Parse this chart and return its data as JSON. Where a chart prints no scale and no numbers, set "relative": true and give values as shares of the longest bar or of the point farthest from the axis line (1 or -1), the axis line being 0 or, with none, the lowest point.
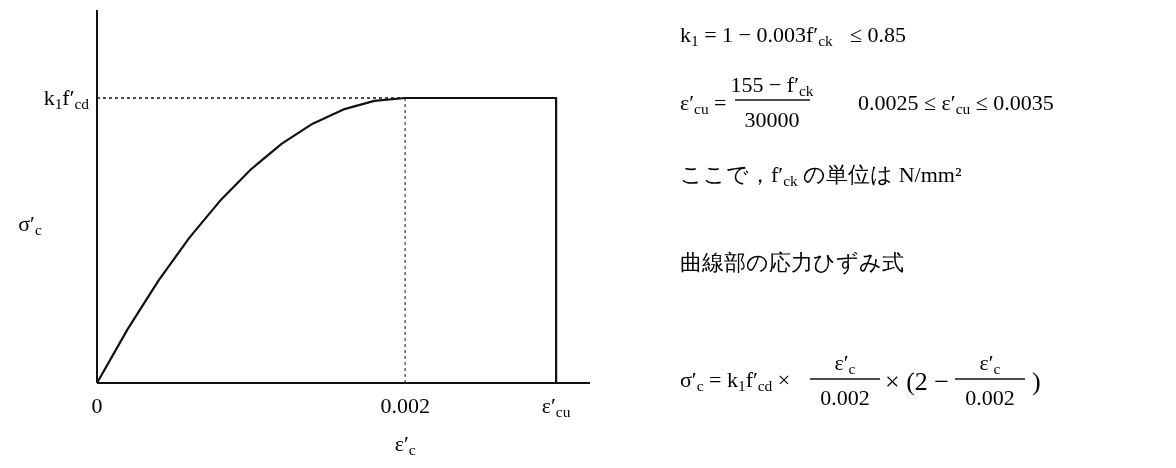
{
  "chart_data": {
    "type": "line",
    "relative": true,
    "xlabel": "ε′$_{c}$",
    "ylabel": "σ′$_{c}$",
    "xlim": [
      0,
      0.0032
    ],
    "xticks": [
      0,
      0.002,
      {
        "value": 0.00298,
        "label": "ε′$_{cu}$"
      }
    ],
    "series": [
      {
        "color": "#111111",
        "x": [
          0,
          0.0002,
          0.0004,
          0.0006,
          0.0008,
          0.001,
          0.0012,
          0.0014,
          0.0016,
          0.0018,
          0.002,
          0.00298,
          0.00298
        ],
        "values": [
          0,
          0.19,
          0.36,
          0.51,
          0.64,
          0.75,
          0.84,
          0.91,
          0.96,
          0.99,
          1,
          1,
          0
        ]
      }
    ],
    "ref_lines": [
      {
        "axis": "y",
        "value": 1,
        "label": "k$_{1}$f′$_{cd}$",
        "line_style": "dotted"
      },
      {
        "axis": "x",
        "value": 0.002,
        "line_style": "dotted"
      }
    ],
    "annotations": [
      "k$_{1}$ = 1 − 0.003f′$_{ck}$",
      "≤ 0.85",
      "ε′$_{cu}$ =",
      "155 − f′$_{ck}$",
      "30000",
      "0.0025 ≤ ε′$_{cu}$ ≤ 0.0035",
      "ここで，f′$_{ck}$ の単位は N/mm²",
      "曲線部の応力ひずみ式",
      "σ′$_{c}$ = k$_{1}$f′$_{cd}$ ×",
      "ε′$_{c}$",
      "0.002",
      "× (2 −",
      "ε′$_{c}$",
      "0.002",
      ")"
    ]
  }
}
